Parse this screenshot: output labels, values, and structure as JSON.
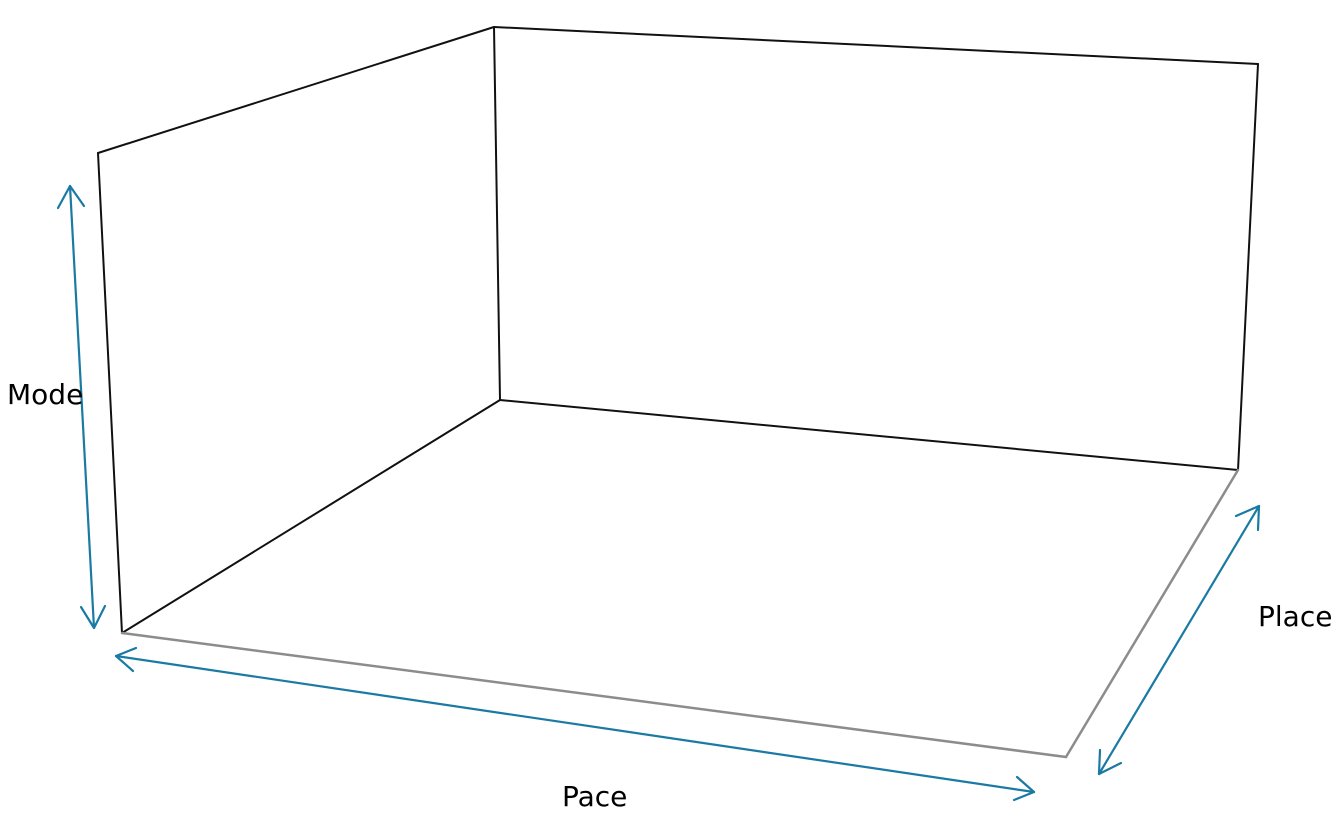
{
  "axes": {
    "vertical": {
      "label": "Mode"
    },
    "horizontal": {
      "label": "Pace"
    },
    "depth": {
      "label": "Place"
    }
  },
  "colors": {
    "arrow": "#1a7aa3",
    "back_edges": "#111111",
    "front_edges": "#8c8c8c",
    "text": "#000000"
  }
}
